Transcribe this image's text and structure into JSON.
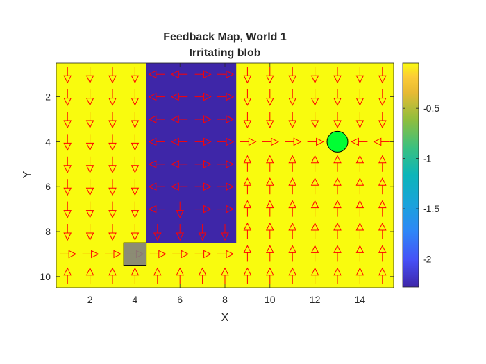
{
  "chart_data": {
    "type": "heatmap",
    "title": "Feedback Map, World 1",
    "subtitle": "Irritating blob",
    "xlabel": "X",
    "ylabel": "Y",
    "xlim": [
      0.5,
      15.5
    ],
    "ylim": [
      0.5,
      10.5
    ],
    "y_reversed": true,
    "x_ticks": [
      2,
      4,
      6,
      8,
      10,
      12,
      14
    ],
    "y_ticks": [
      2,
      4,
      6,
      8,
      10
    ],
    "colorbar": {
      "range": [
        -2.28,
        -0.05
      ],
      "ticks": [
        -0.5,
        -1,
        -1.5,
        -2
      ],
      "tick_labels": [
        "-0.5",
        "-1",
        "-1.5",
        "-2"
      ],
      "colormap": "parula"
    },
    "field": {
      "background_value": -0.05,
      "background_color": "#F9FB0E",
      "regions": [
        {
          "name": "irritating-blob",
          "value": -2.28,
          "color": "#3E26A8",
          "x_range": [
            4.5,
            8.5
          ],
          "y_range": [
            0.5,
            8.5
          ]
        }
      ]
    },
    "start": {
      "x": 4,
      "y": 9,
      "color": "#808080"
    },
    "goal": {
      "x": 13,
      "y": 4,
      "color": "#00FF33"
    },
    "arrow_color": "#FF0000",
    "arrows": [
      {
        "x": 1,
        "y": 1,
        "d": "D"
      },
      {
        "x": 2,
        "y": 1,
        "d": "D"
      },
      {
        "x": 3,
        "y": 1,
        "d": "D"
      },
      {
        "x": 4,
        "y": 1,
        "d": "D"
      },
      {
        "x": 5,
        "y": 1,
        "d": "L"
      },
      {
        "x": 6,
        "y": 1,
        "d": "L"
      },
      {
        "x": 7,
        "y": 1,
        "d": "R"
      },
      {
        "x": 8,
        "y": 1,
        "d": "R"
      },
      {
        "x": 9,
        "y": 1,
        "d": "D"
      },
      {
        "x": 10,
        "y": 1,
        "d": "D"
      },
      {
        "x": 11,
        "y": 1,
        "d": "D"
      },
      {
        "x": 12,
        "y": 1,
        "d": "D"
      },
      {
        "x": 13,
        "y": 1,
        "d": "D"
      },
      {
        "x": 14,
        "y": 1,
        "d": "D"
      },
      {
        "x": 15,
        "y": 1,
        "d": "D"
      },
      {
        "x": 1,
        "y": 2,
        "d": "D"
      },
      {
        "x": 2,
        "y": 2,
        "d": "D"
      },
      {
        "x": 3,
        "y": 2,
        "d": "D"
      },
      {
        "x": 4,
        "y": 2,
        "d": "D"
      },
      {
        "x": 5,
        "y": 2,
        "d": "L"
      },
      {
        "x": 6,
        "y": 2,
        "d": "L"
      },
      {
        "x": 7,
        "y": 2,
        "d": "R"
      },
      {
        "x": 8,
        "y": 2,
        "d": "R"
      },
      {
        "x": 9,
        "y": 2,
        "d": "D"
      },
      {
        "x": 10,
        "y": 2,
        "d": "D"
      },
      {
        "x": 11,
        "y": 2,
        "d": "D"
      },
      {
        "x": 12,
        "y": 2,
        "d": "D"
      },
      {
        "x": 13,
        "y": 2,
        "d": "D"
      },
      {
        "x": 14,
        "y": 2,
        "d": "D"
      },
      {
        "x": 15,
        "y": 2,
        "d": "D"
      },
      {
        "x": 1,
        "y": 3,
        "d": "D"
      },
      {
        "x": 2,
        "y": 3,
        "d": "D"
      },
      {
        "x": 3,
        "y": 3,
        "d": "D"
      },
      {
        "x": 4,
        "y": 3,
        "d": "D"
      },
      {
        "x": 5,
        "y": 3,
        "d": "L"
      },
      {
        "x": 6,
        "y": 3,
        "d": "L"
      },
      {
        "x": 7,
        "y": 3,
        "d": "R"
      },
      {
        "x": 8,
        "y": 3,
        "d": "R"
      },
      {
        "x": 9,
        "y": 3,
        "d": "D"
      },
      {
        "x": 10,
        "y": 3,
        "d": "D"
      },
      {
        "x": 11,
        "y": 3,
        "d": "D"
      },
      {
        "x": 12,
        "y": 3,
        "d": "D"
      },
      {
        "x": 13,
        "y": 3,
        "d": "D"
      },
      {
        "x": 14,
        "y": 3,
        "d": "D"
      },
      {
        "x": 15,
        "y": 3,
        "d": "D"
      },
      {
        "x": 1,
        "y": 4,
        "d": "D"
      },
      {
        "x": 2,
        "y": 4,
        "d": "D"
      },
      {
        "x": 3,
        "y": 4,
        "d": "D"
      },
      {
        "x": 4,
        "y": 4,
        "d": "D"
      },
      {
        "x": 5,
        "y": 4,
        "d": "L"
      },
      {
        "x": 6,
        "y": 4,
        "d": "L"
      },
      {
        "x": 7,
        "y": 4,
        "d": "R"
      },
      {
        "x": 8,
        "y": 4,
        "d": "R"
      },
      {
        "x": 9,
        "y": 4,
        "d": "R"
      },
      {
        "x": 10,
        "y": 4,
        "d": "R"
      },
      {
        "x": 11,
        "y": 4,
        "d": "R"
      },
      {
        "x": 12,
        "y": 4,
        "d": "R"
      },
      {
        "x": 14,
        "y": 4,
        "d": "L"
      },
      {
        "x": 15,
        "y": 4,
        "d": "L"
      },
      {
        "x": 1,
        "y": 5,
        "d": "D"
      },
      {
        "x": 2,
        "y": 5,
        "d": "D"
      },
      {
        "x": 3,
        "y": 5,
        "d": "D"
      },
      {
        "x": 4,
        "y": 5,
        "d": "D"
      },
      {
        "x": 5,
        "y": 5,
        "d": "L"
      },
      {
        "x": 6,
        "y": 5,
        "d": "L"
      },
      {
        "x": 7,
        "y": 5,
        "d": "R"
      },
      {
        "x": 8,
        "y": 5,
        "d": "R"
      },
      {
        "x": 9,
        "y": 5,
        "d": "U"
      },
      {
        "x": 10,
        "y": 5,
        "d": "U"
      },
      {
        "x": 11,
        "y": 5,
        "d": "U"
      },
      {
        "x": 12,
        "y": 5,
        "d": "U"
      },
      {
        "x": 13,
        "y": 5,
        "d": "U"
      },
      {
        "x": 14,
        "y": 5,
        "d": "U"
      },
      {
        "x": 15,
        "y": 5,
        "d": "U"
      },
      {
        "x": 1,
        "y": 6,
        "d": "D"
      },
      {
        "x": 2,
        "y": 6,
        "d": "D"
      },
      {
        "x": 3,
        "y": 6,
        "d": "D"
      },
      {
        "x": 4,
        "y": 6,
        "d": "D"
      },
      {
        "x": 5,
        "y": 6,
        "d": "L"
      },
      {
        "x": 6,
        "y": 6,
        "d": "L"
      },
      {
        "x": 7,
        "y": 6,
        "d": "R"
      },
      {
        "x": 8,
        "y": 6,
        "d": "R"
      },
      {
        "x": 9,
        "y": 6,
        "d": "U"
      },
      {
        "x": 10,
        "y": 6,
        "d": "U"
      },
      {
        "x": 11,
        "y": 6,
        "d": "U"
      },
      {
        "x": 12,
        "y": 6,
        "d": "U"
      },
      {
        "x": 13,
        "y": 6,
        "d": "U"
      },
      {
        "x": 14,
        "y": 6,
        "d": "U"
      },
      {
        "x": 15,
        "y": 6,
        "d": "U"
      },
      {
        "x": 1,
        "y": 7,
        "d": "D"
      },
      {
        "x": 2,
        "y": 7,
        "d": "D"
      },
      {
        "x": 3,
        "y": 7,
        "d": "D"
      },
      {
        "x": 4,
        "y": 7,
        "d": "D"
      },
      {
        "x": 5,
        "y": 7,
        "d": "L"
      },
      {
        "x": 6,
        "y": 7,
        "d": "D"
      },
      {
        "x": 7,
        "y": 7,
        "d": "R"
      },
      {
        "x": 8,
        "y": 7,
        "d": "R"
      },
      {
        "x": 9,
        "y": 7,
        "d": "U"
      },
      {
        "x": 10,
        "y": 7,
        "d": "U"
      },
      {
        "x": 11,
        "y": 7,
        "d": "U"
      },
      {
        "x": 12,
        "y": 7,
        "d": "U"
      },
      {
        "x": 13,
        "y": 7,
        "d": "U"
      },
      {
        "x": 14,
        "y": 7,
        "d": "U"
      },
      {
        "x": 15,
        "y": 7,
        "d": "U"
      },
      {
        "x": 1,
        "y": 8,
        "d": "D"
      },
      {
        "x": 2,
        "y": 8,
        "d": "D"
      },
      {
        "x": 3,
        "y": 8,
        "d": "D"
      },
      {
        "x": 4,
        "y": 8,
        "d": "D"
      },
      {
        "x": 5,
        "y": 8,
        "d": "D"
      },
      {
        "x": 6,
        "y": 8,
        "d": "D"
      },
      {
        "x": 7,
        "y": 8,
        "d": "D"
      },
      {
        "x": 8,
        "y": 8,
        "d": "D"
      },
      {
        "x": 9,
        "y": 8,
        "d": "U"
      },
      {
        "x": 10,
        "y": 8,
        "d": "U"
      },
      {
        "x": 11,
        "y": 8,
        "d": "U"
      },
      {
        "x": 12,
        "y": 8,
        "d": "U"
      },
      {
        "x": 13,
        "y": 8,
        "d": "U"
      },
      {
        "x": 14,
        "y": 8,
        "d": "U"
      },
      {
        "x": 15,
        "y": 8,
        "d": "U"
      },
      {
        "x": 1,
        "y": 9,
        "d": "R"
      },
      {
        "x": 2,
        "y": 9,
        "d": "R"
      },
      {
        "x": 3,
        "y": 9,
        "d": "R"
      },
      {
        "x": 4,
        "y": 9,
        "d": "R"
      },
      {
        "x": 5,
        "y": 9,
        "d": "R"
      },
      {
        "x": 6,
        "y": 9,
        "d": "R"
      },
      {
        "x": 7,
        "y": 9,
        "d": "R"
      },
      {
        "x": 8,
        "y": 9,
        "d": "R"
      },
      {
        "x": 9,
        "y": 9,
        "d": "U"
      },
      {
        "x": 10,
        "y": 9,
        "d": "U"
      },
      {
        "x": 11,
        "y": 9,
        "d": "U"
      },
      {
        "x": 12,
        "y": 9,
        "d": "U"
      },
      {
        "x": 13,
        "y": 9,
        "d": "U"
      },
      {
        "x": 14,
        "y": 9,
        "d": "U"
      },
      {
        "x": 15,
        "y": 9,
        "d": "U"
      },
      {
        "x": 1,
        "y": 10,
        "d": "U"
      },
      {
        "x": 2,
        "y": 10,
        "d": "U"
      },
      {
        "x": 3,
        "y": 10,
        "d": "U"
      },
      {
        "x": 4,
        "y": 10,
        "d": "U"
      },
      {
        "x": 5,
        "y": 10,
        "d": "U"
      },
      {
        "x": 6,
        "y": 10,
        "d": "U"
      },
      {
        "x": 7,
        "y": 10,
        "d": "U"
      },
      {
        "x": 8,
        "y": 10,
        "d": "U"
      },
      {
        "x": 9,
        "y": 10,
        "d": "U"
      },
      {
        "x": 10,
        "y": 10,
        "d": "U"
      },
      {
        "x": 11,
        "y": 10,
        "d": "U"
      },
      {
        "x": 12,
        "y": 10,
        "d": "U"
      },
      {
        "x": 13,
        "y": 10,
        "d": "U"
      },
      {
        "x": 14,
        "y": 10,
        "d": "U"
      },
      {
        "x": 15,
        "y": 10,
        "d": "U"
      }
    ]
  }
}
